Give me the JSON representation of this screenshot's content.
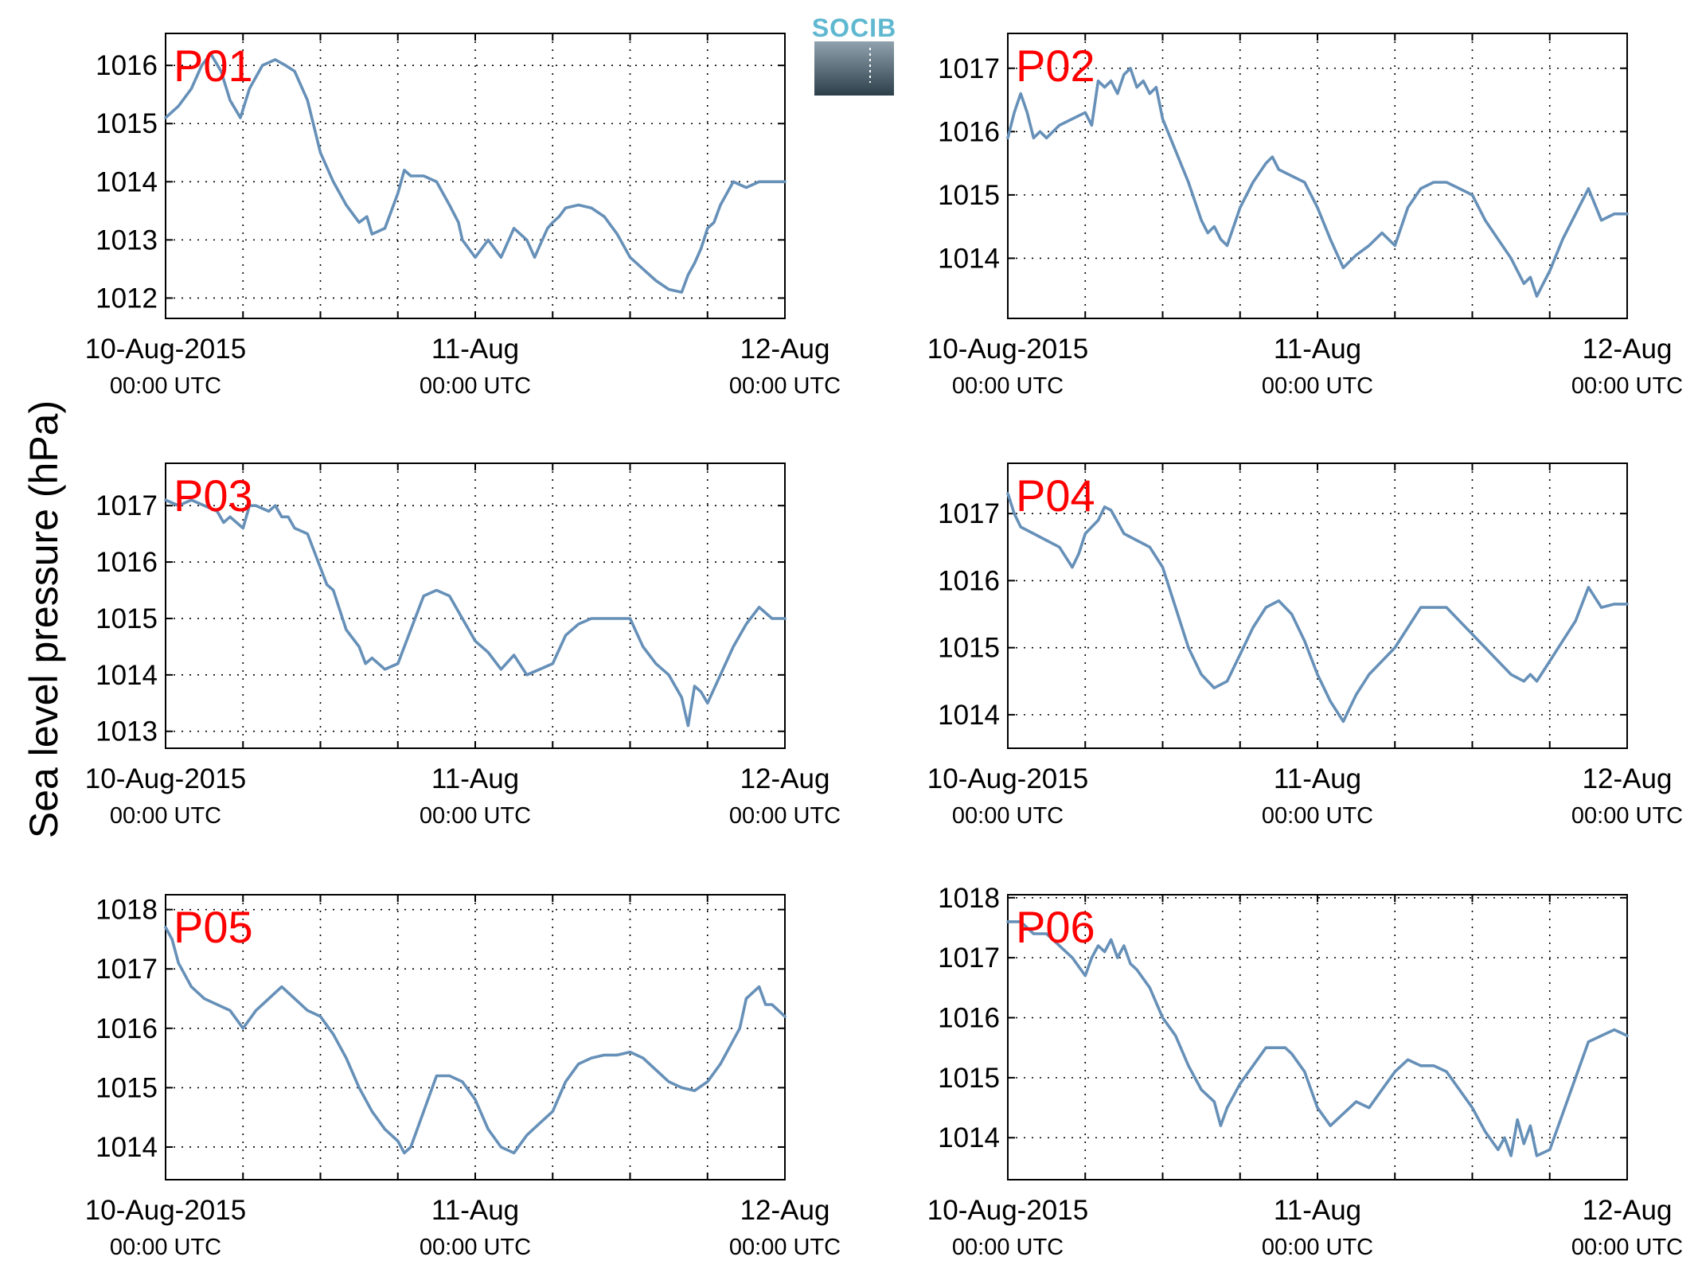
{
  "logo": {
    "text": "SOCIB",
    "text_color": "#5fb8d0",
    "gradient_top": "#8fa2ad",
    "gradient_bottom": "#2c3f4a"
  },
  "ylabel": "Sea level pressure (hPa)",
  "colors": {
    "series": "#6690b8",
    "title": "#ff0000",
    "grid": "#000000"
  },
  "chart_data": [
    {
      "type": "line",
      "title": "P01",
      "ylim": [
        1011.65,
        1016.55
      ],
      "yticks": [
        1012,
        1013,
        1014,
        1015,
        1016
      ],
      "xlim": [
        0,
        48
      ],
      "grid": true,
      "xticks": [
        {
          "date": "10-Aug-2015",
          "time": "00:00 UTC"
        },
        {
          "date": "11-Aug",
          "time": "00:00 UTC"
        },
        {
          "date": "12-Aug",
          "time": "00:00 UTC"
        }
      ],
      "series": [
        {
          "x": [
            0,
            1,
            2,
            2.8,
            3.5,
            4.3,
            5,
            5.8,
            6.5,
            7.5,
            8.5,
            9.3,
            10,
            11,
            12,
            12.6,
            13,
            14,
            15,
            15.6,
            16,
            17,
            18,
            18.5,
            19,
            20,
            21,
            22,
            22.7,
            23,
            24,
            25,
            26,
            27,
            28,
            28.6,
            29,
            29.6,
            30,
            30.5,
            31,
            32,
            33,
            34,
            35,
            36,
            36.5,
            37,
            38,
            39,
            40,
            40.5,
            41,
            41.5,
            42,
            42.5,
            43,
            44,
            45,
            46,
            47,
            48
          ],
          "y": [
            1015.1,
            1015.3,
            1015.6,
            1016.0,
            1016.2,
            1015.9,
            1015.4,
            1015.1,
            1015.6,
            1016.0,
            1016.1,
            1016.0,
            1015.9,
            1015.4,
            1014.5,
            1014.2,
            1014.0,
            1013.6,
            1013.3,
            1013.4,
            1013.1,
            1013.2,
            1013.8,
            1014.2,
            1014.1,
            1014.1,
            1014.0,
            1013.6,
            1013.3,
            1013.0,
            1012.7,
            1013.0,
            1012.7,
            1013.2,
            1013.0,
            1012.7,
            1012.9,
            1013.2,
            1013.3,
            1013.4,
            1013.55,
            1013.6,
            1013.55,
            1013.4,
            1013.1,
            1012.7,
            1012.6,
            1012.5,
            1012.3,
            1012.15,
            1012.1,
            1012.4,
            1012.6,
            1012.85,
            1013.2,
            1013.3,
            1013.6,
            1014.0,
            1013.9,
            1014.0,
            1014.0,
            1014.0
          ]
        }
      ]
    },
    {
      "type": "line",
      "title": "P02",
      "ylim": [
        1013.05,
        1017.55
      ],
      "yticks": [
        1014,
        1015,
        1016,
        1017
      ],
      "xlim": [
        0,
        48
      ],
      "grid": true,
      "xticks": [
        {
          "date": "10-Aug-2015",
          "time": "00:00 UTC"
        },
        {
          "date": "11-Aug",
          "time": "00:00 UTC"
        },
        {
          "date": "12-Aug",
          "time": "00:00 UTC"
        }
      ],
      "series": [
        {
          "x": [
            0,
            0.5,
            1,
            1.5,
            2,
            2.5,
            3,
            4,
            5,
            6,
            6.5,
            7,
            7.5,
            8,
            8.5,
            9,
            9.5,
            10,
            10.5,
            11,
            11.5,
            12,
            13,
            14,
            15,
            15.5,
            16,
            16.5,
            17,
            18,
            19,
            20,
            20.5,
            21,
            22,
            23,
            24,
            25,
            26,
            27,
            28,
            29,
            30,
            31,
            32,
            33,
            34,
            35,
            36,
            37,
            38,
            39,
            40,
            40.5,
            41,
            41.5,
            42,
            43,
            44,
            45,
            46,
            47,
            48
          ],
          "y": [
            1015.9,
            1016.3,
            1016.6,
            1016.3,
            1015.9,
            1016.0,
            1015.9,
            1016.1,
            1016.2,
            1016.3,
            1016.1,
            1016.8,
            1016.7,
            1016.8,
            1016.6,
            1016.9,
            1017.0,
            1016.7,
            1016.8,
            1016.6,
            1016.7,
            1016.2,
            1015.7,
            1015.2,
            1014.6,
            1014.4,
            1014.5,
            1014.3,
            1014.2,
            1014.8,
            1015.2,
            1015.5,
            1015.6,
            1015.4,
            1015.3,
            1015.2,
            1014.8,
            1014.3,
            1013.85,
            1014.05,
            1014.2,
            1014.4,
            1014.2,
            1014.8,
            1015.1,
            1015.2,
            1015.2,
            1015.1,
            1015.0,
            1014.6,
            1014.3,
            1014.0,
            1013.6,
            1013.7,
            1013.4,
            1013.6,
            1013.8,
            1014.3,
            1014.7,
            1015.1,
            1014.6,
            1014.7,
            1014.7
          ]
        }
      ]
    },
    {
      "type": "line",
      "title": "P03",
      "ylim": [
        1012.7,
        1017.75
      ],
      "yticks": [
        1013,
        1014,
        1015,
        1016,
        1017
      ],
      "xlim": [
        0,
        48
      ],
      "grid": true,
      "xticks": [
        {
          "date": "10-Aug-2015",
          "time": "00:00 UTC"
        },
        {
          "date": "11-Aug",
          "time": "00:00 UTC"
        },
        {
          "date": "12-Aug",
          "time": "00:00 UTC"
        }
      ],
      "series": [
        {
          "x": [
            0,
            1,
            2,
            3,
            4,
            4.5,
            5,
            6,
            6.5,
            7,
            8,
            8.5,
            9,
            9.5,
            10,
            11,
            12,
            12.5,
            13,
            14,
            15,
            15.5,
            16,
            17,
            18,
            19,
            20,
            21,
            22,
            23,
            24,
            25,
            26,
            27,
            28,
            29,
            30,
            31,
            32,
            33,
            34,
            35,
            36,
            37,
            38,
            39,
            40,
            40.5,
            41,
            41.5,
            42,
            43,
            44,
            45,
            46,
            47,
            48
          ],
          "y": [
            1017.1,
            1017.0,
            1017.1,
            1017.0,
            1016.9,
            1016.7,
            1016.8,
            1016.6,
            1017.0,
            1017.0,
            1016.9,
            1017.0,
            1016.8,
            1016.8,
            1016.6,
            1016.5,
            1015.9,
            1015.6,
            1015.5,
            1014.8,
            1014.5,
            1014.2,
            1014.3,
            1014.1,
            1014.2,
            1014.8,
            1015.4,
            1015.5,
            1015.4,
            1015.0,
            1014.6,
            1014.4,
            1014.1,
            1014.35,
            1014.0,
            1014.1,
            1014.2,
            1014.7,
            1014.9,
            1015.0,
            1015.0,
            1015.0,
            1015.0,
            1014.5,
            1014.2,
            1014.0,
            1013.6,
            1013.1,
            1013.8,
            1013.7,
            1013.5,
            1014.0,
            1014.5,
            1014.9,
            1015.2,
            1015.0,
            1015.0
          ]
        }
      ]
    },
    {
      "type": "line",
      "title": "P04",
      "ylim": [
        1013.5,
        1017.75
      ],
      "yticks": [
        1014,
        1015,
        1016,
        1017
      ],
      "xlim": [
        0,
        48
      ],
      "grid": true,
      "xticks": [
        {
          "date": "10-Aug-2015",
          "time": "00:00 UTC"
        },
        {
          "date": "11-Aug",
          "time": "00:00 UTC"
        },
        {
          "date": "12-Aug",
          "time": "00:00 UTC"
        }
      ],
      "series": [
        {
          "x": [
            0,
            0.5,
            1,
            2,
            3,
            4,
            5,
            5.5,
            6,
            7,
            7.5,
            8,
            9,
            10,
            11,
            12,
            13,
            14,
            15,
            16,
            17,
            18,
            19,
            20,
            21,
            22,
            23,
            24,
            25,
            26,
            27,
            28,
            29,
            30,
            31,
            32,
            33,
            34,
            35,
            36,
            37,
            38,
            39,
            40,
            40.5,
            41,
            42,
            43,
            44,
            45,
            46,
            47,
            48
          ],
          "y": [
            1017.3,
            1017.0,
            1016.8,
            1016.7,
            1016.6,
            1016.5,
            1016.2,
            1016.4,
            1016.7,
            1016.9,
            1017.1,
            1017.05,
            1016.7,
            1016.6,
            1016.5,
            1016.2,
            1015.6,
            1015.0,
            1014.6,
            1014.4,
            1014.5,
            1014.9,
            1015.3,
            1015.6,
            1015.7,
            1015.5,
            1015.1,
            1014.6,
            1014.2,
            1013.9,
            1014.3,
            1014.6,
            1014.8,
            1015.0,
            1015.3,
            1015.6,
            1015.6,
            1015.6,
            1015.4,
            1015.2,
            1015.0,
            1014.8,
            1014.6,
            1014.5,
            1014.6,
            1014.5,
            1014.8,
            1015.1,
            1015.4,
            1015.9,
            1015.6,
            1015.65,
            1015.65
          ]
        }
      ]
    },
    {
      "type": "line",
      "title": "P05",
      "ylim": [
        1013.45,
        1018.25
      ],
      "yticks": [
        1014,
        1015,
        1016,
        1017,
        1018
      ],
      "xlim": [
        0,
        48
      ],
      "grid": true,
      "xticks": [
        {
          "date": "10-Aug-2015",
          "time": "00:00 UTC"
        },
        {
          "date": "11-Aug",
          "time": "00:00 UTC"
        },
        {
          "date": "12-Aug",
          "time": "00:00 UTC"
        }
      ],
      "series": [
        {
          "x": [
            0,
            0.5,
            1,
            2,
            3,
            4,
            5,
            6,
            7,
            8,
            9,
            10,
            11,
            12,
            13,
            14,
            15,
            16,
            17,
            18,
            18.5,
            19,
            20,
            21,
            22,
            23,
            24,
            25,
            26,
            27,
            28,
            29,
            30,
            31,
            32,
            33,
            34,
            35,
            36,
            37,
            38,
            39,
            40,
            41,
            42,
            43,
            44,
            44.5,
            45,
            46,
            46.5,
            47,
            48
          ],
          "y": [
            1017.7,
            1017.5,
            1017.1,
            1016.7,
            1016.5,
            1016.4,
            1016.3,
            1016.0,
            1016.3,
            1016.5,
            1016.7,
            1016.5,
            1016.3,
            1016.2,
            1015.9,
            1015.5,
            1015.0,
            1014.6,
            1014.3,
            1014.1,
            1013.9,
            1014.0,
            1014.6,
            1015.2,
            1015.2,
            1015.1,
            1014.8,
            1014.3,
            1014.0,
            1013.9,
            1014.2,
            1014.4,
            1014.6,
            1015.1,
            1015.4,
            1015.5,
            1015.55,
            1015.55,
            1015.6,
            1015.5,
            1015.3,
            1015.1,
            1015.0,
            1014.95,
            1015.1,
            1015.4,
            1015.8,
            1016.0,
            1016.5,
            1016.7,
            1016.4,
            1016.4,
            1016.2
          ]
        }
      ]
    },
    {
      "type": "line",
      "title": "P06",
      "ylim": [
        1013.3,
        1018.05
      ],
      "yticks": [
        1014,
        1015,
        1016,
        1017,
        1018
      ],
      "xlim": [
        0,
        48
      ],
      "grid": true,
      "xticks": [
        {
          "date": "10-Aug-2015",
          "time": "00:00 UTC"
        },
        {
          "date": "11-Aug",
          "time": "00:00 UTC"
        },
        {
          "date": "12-Aug",
          "time": "00:00 UTC"
        }
      ],
      "series": [
        {
          "x": [
            0,
            1,
            2,
            3,
            4,
            5,
            6,
            6.5,
            7,
            7.5,
            8,
            8.5,
            9,
            9.5,
            10,
            11,
            12,
            13,
            14,
            15,
            16,
            16.5,
            17,
            18,
            19,
            20,
            21,
            21.5,
            22,
            23,
            24,
            25,
            26,
            27,
            28,
            29,
            30,
            31,
            32,
            33,
            34,
            35,
            36,
            37,
            38,
            38.5,
            39,
            39.5,
            40,
            40.5,
            41,
            42,
            43,
            44,
            45,
            46,
            47,
            48
          ],
          "y": [
            1017.6,
            1017.6,
            1017.4,
            1017.4,
            1017.2,
            1017.0,
            1016.7,
            1017.0,
            1017.2,
            1017.1,
            1017.3,
            1017.0,
            1017.2,
            1016.9,
            1016.8,
            1016.5,
            1016.0,
            1015.7,
            1015.2,
            1014.8,
            1014.6,
            1014.2,
            1014.5,
            1014.9,
            1015.2,
            1015.5,
            1015.5,
            1015.5,
            1015.4,
            1015.1,
            1014.5,
            1014.2,
            1014.4,
            1014.6,
            1014.5,
            1014.8,
            1015.1,
            1015.3,
            1015.2,
            1015.2,
            1015.1,
            1014.8,
            1014.5,
            1014.1,
            1013.8,
            1014.0,
            1013.7,
            1014.3,
            1013.9,
            1014.2,
            1013.7,
            1013.8,
            1014.4,
            1015.0,
            1015.6,
            1015.7,
            1015.8,
            1015.7
          ]
        }
      ]
    }
  ]
}
